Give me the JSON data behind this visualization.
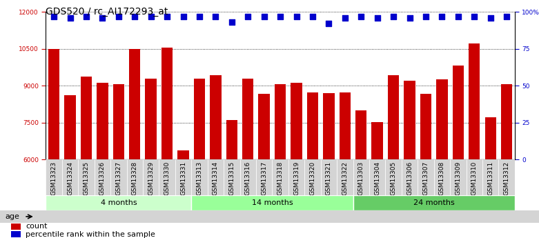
{
  "title": "GDS520 / rc_AI172293_at",
  "categories": [
    "GSM13323",
    "GSM13324",
    "GSM13325",
    "GSM13326",
    "GSM13327",
    "GSM13328",
    "GSM13329",
    "GSM13330",
    "GSM13331",
    "GSM13313",
    "GSM13314",
    "GSM13315",
    "GSM13316",
    "GSM13317",
    "GSM13318",
    "GSM13319",
    "GSM13320",
    "GSM13321",
    "GSM13322",
    "GSM13303",
    "GSM13304",
    "GSM13305",
    "GSM13306",
    "GSM13307",
    "GSM13308",
    "GSM13309",
    "GSM13310",
    "GSM13311",
    "GSM13312"
  ],
  "bar_values": [
    10480,
    8620,
    9380,
    9120,
    9060,
    10490,
    9300,
    10540,
    6380,
    9280,
    9430,
    7590,
    9280,
    8680,
    9060,
    9110,
    8720,
    8690,
    8720,
    7990,
    7530,
    9440,
    9210,
    8680,
    9260,
    9810,
    10730,
    7720,
    9060
  ],
  "percentile_values": [
    97,
    96,
    97,
    96,
    97,
    97,
    97,
    97,
    97,
    97,
    97,
    93,
    97,
    97,
    97,
    97,
    97,
    92,
    96,
    97,
    96,
    97,
    96,
    97,
    97,
    97,
    97,
    96,
    97
  ],
  "bar_color": "#cc0000",
  "percentile_color": "#0000cc",
  "ylim_left": [
    6000,
    12000
  ],
  "ylim_right": [
    0,
    100
  ],
  "yticks_left": [
    6000,
    7500,
    9000,
    10500,
    12000
  ],
  "yticks_right": [
    0,
    25,
    50,
    75,
    100
  ],
  "ytick_labels_right": [
    "0",
    "25",
    "50",
    "75",
    "100%"
  ],
  "groups": [
    {
      "label": "4 months",
      "start": 0,
      "end": 9,
      "color": "#ccffcc"
    },
    {
      "label": "14 months",
      "start": 9,
      "end": 19,
      "color": "#99ff99"
    },
    {
      "label": "24 months",
      "start": 19,
      "end": 29,
      "color": "#66cc66"
    }
  ],
  "age_label": "age",
  "legend_count_label": "count",
  "legend_pct_label": "percentile rank within the sample",
  "bar_color_legend": "#cc0000",
  "percentile_color_legend": "#0000cc",
  "title_fontsize": 10,
  "tick_fontsize": 6.5,
  "label_fontsize": 8,
  "xtick_bg": "#d4d4d4",
  "age_row_bg": "#d4d4d4",
  "spine_color": "#000000"
}
